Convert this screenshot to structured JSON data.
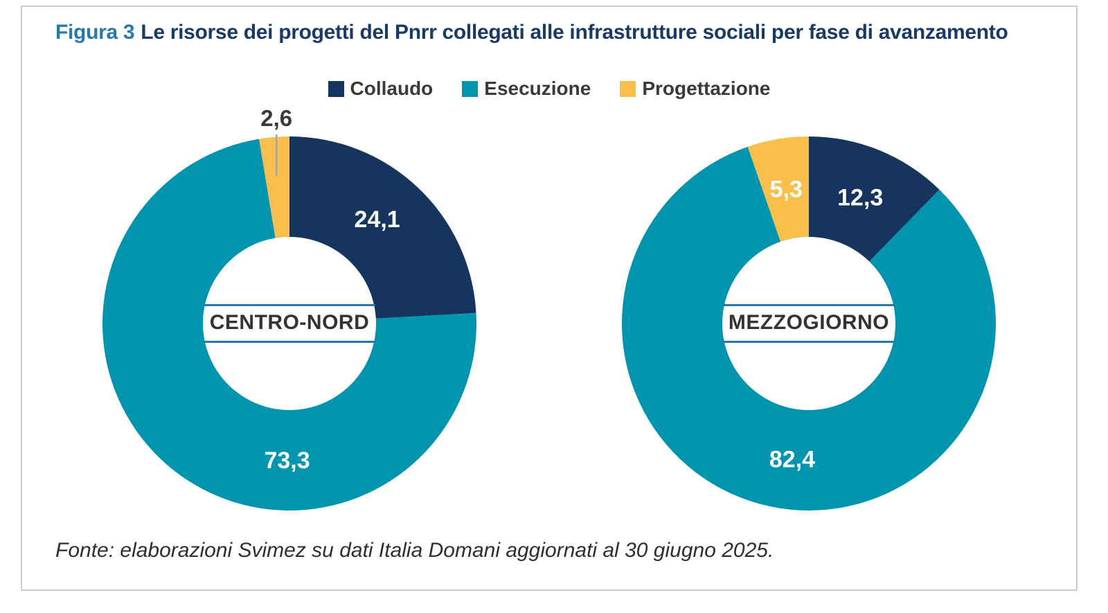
{
  "title": {
    "figure_label": "Figura 3",
    "text": "Le risorse dei progetti del Pnrr collegati alle infrastrutture sociali per fase di avanzamento"
  },
  "source": "Fonte: elaborazioni Svimez su dati Italia Domani aggiornati al 30 giugno 2025.",
  "colors": {
    "collaudo": "#16355E",
    "esecuzione": "#0094AF",
    "progettazione": "#F9BE4B",
    "figure_label_blue": "#2878A8",
    "title_navy": "#1A3A66",
    "center_label_rule": "#2878A8",
    "card_border": "#CBCBCB",
    "leader_line": "#A5A5A5",
    "text_dark": "#3A3A3A"
  },
  "chart_data": {
    "type": "pie",
    "subtype": "donut",
    "unit": "percent",
    "legend_position": "top-center",
    "legend": [
      {
        "label": "Collaudo",
        "color": "#16355E"
      },
      {
        "label": "Esecuzione",
        "color": "#0094AF"
      },
      {
        "label": "Progettazione",
        "color": "#F9BE4B"
      }
    ],
    "charts": [
      {
        "center_label": "CENTRO-NORD",
        "slices": [
          {
            "name": "Collaudo",
            "value": 24.1,
            "label": "24,1",
            "color": "#16355E",
            "label_color": "#FFFFFF",
            "label_angle_deg": 40
          },
          {
            "name": "Esecuzione",
            "value": 73.3,
            "label": "73,3",
            "color": "#0094AF",
            "label_color": "#FFFFFF",
            "label_angle_deg": 181
          },
          {
            "name": "Progettazione",
            "value": 2.6,
            "label": "2,6",
            "color": "#F9BE4B",
            "label_color": "#3A3A3A",
            "label_outside": true
          }
        ]
      },
      {
        "center_label": "MEZZOGIORNO",
        "slices": [
          {
            "name": "Collaudo",
            "value": 12.3,
            "label": "12,3",
            "color": "#16355E",
            "label_color": "#FFFFFF"
          },
          {
            "name": "Esecuzione",
            "value": 82.4,
            "label": "82,4",
            "color": "#0094AF",
            "label_color": "#FFFFFF",
            "label_angle_deg": 187
          },
          {
            "name": "Progettazione",
            "value": 5.3,
            "label": "5,3",
            "color": "#F9BE4B",
            "label_color": "#FFFFFF"
          }
        ]
      }
    ]
  }
}
